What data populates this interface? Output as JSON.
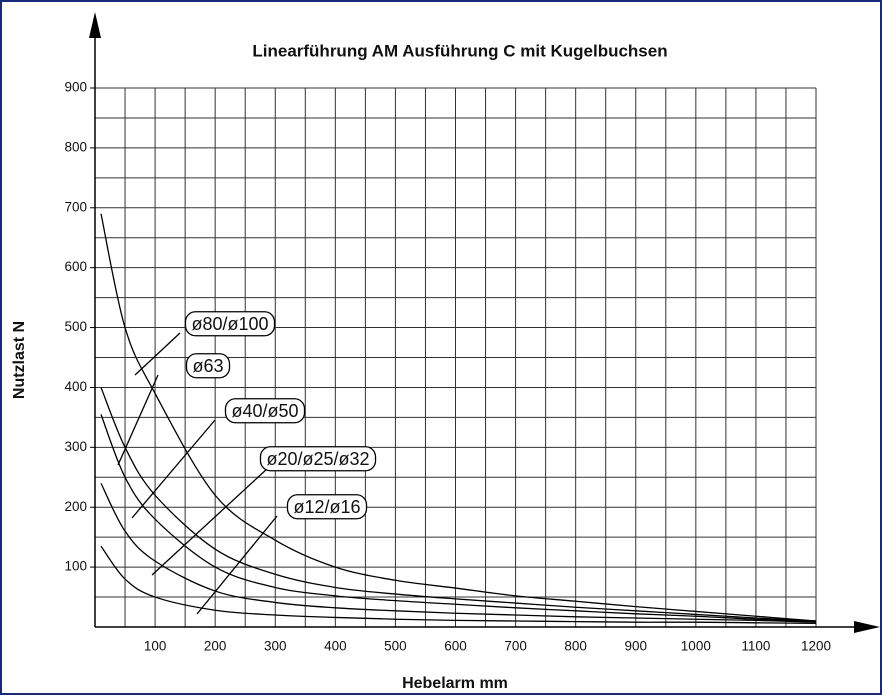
{
  "chart_data": {
    "type": "line",
    "title": "Linearführung AM Ausführung C mit Kugelbuchsen",
    "x_label": "Hebelarm mm",
    "y_label": "Nutzlast N",
    "x": [
      10,
      50,
      100,
      200,
      300,
      400,
      500,
      600,
      700,
      800,
      900,
      1000,
      1100,
      1200
    ],
    "series": [
      {
        "name": "ø80/ø100",
        "color": "#000000",
        "values": [
          690,
          500,
          390,
          220,
          145,
          100,
          78,
          65,
          52,
          43,
          34,
          26,
          18,
          10
        ]
      },
      {
        "name": "ø63",
        "color": "#000000",
        "values": [
          400,
          300,
          220,
          130,
          88,
          66,
          55,
          47,
          40,
          33,
          27,
          21,
          15,
          10
        ]
      },
      {
        "name": "ø40/ø50",
        "color": "#000000",
        "values": [
          355,
          250,
          180,
          100,
          66,
          52,
          44,
          38,
          32,
          27,
          22,
          18,
          13,
          10
        ]
      },
      {
        "name": "ø20/ø25/ø32",
        "color": "#000000",
        "values": [
          240,
          160,
          110,
          60,
          41,
          32,
          27,
          23,
          20,
          17,
          15,
          13,
          11,
          8
        ]
      },
      {
        "name": "ø12/ø16",
        "color": "#000000",
        "values": [
          135,
          80,
          50,
          28,
          20,
          16,
          13,
          11,
          10,
          9,
          8,
          8,
          7,
          6
        ]
      }
    ],
    "xlim": [
      0,
      1200
    ],
    "ylim": [
      0,
      900
    ],
    "xticks": [
      100,
      200,
      300,
      400,
      500,
      600,
      700,
      800,
      900,
      1000,
      1100,
      1200
    ],
    "yticks": [
      100,
      200,
      300,
      400,
      500,
      600,
      700,
      800,
      900
    ],
    "grid": true
  }
}
